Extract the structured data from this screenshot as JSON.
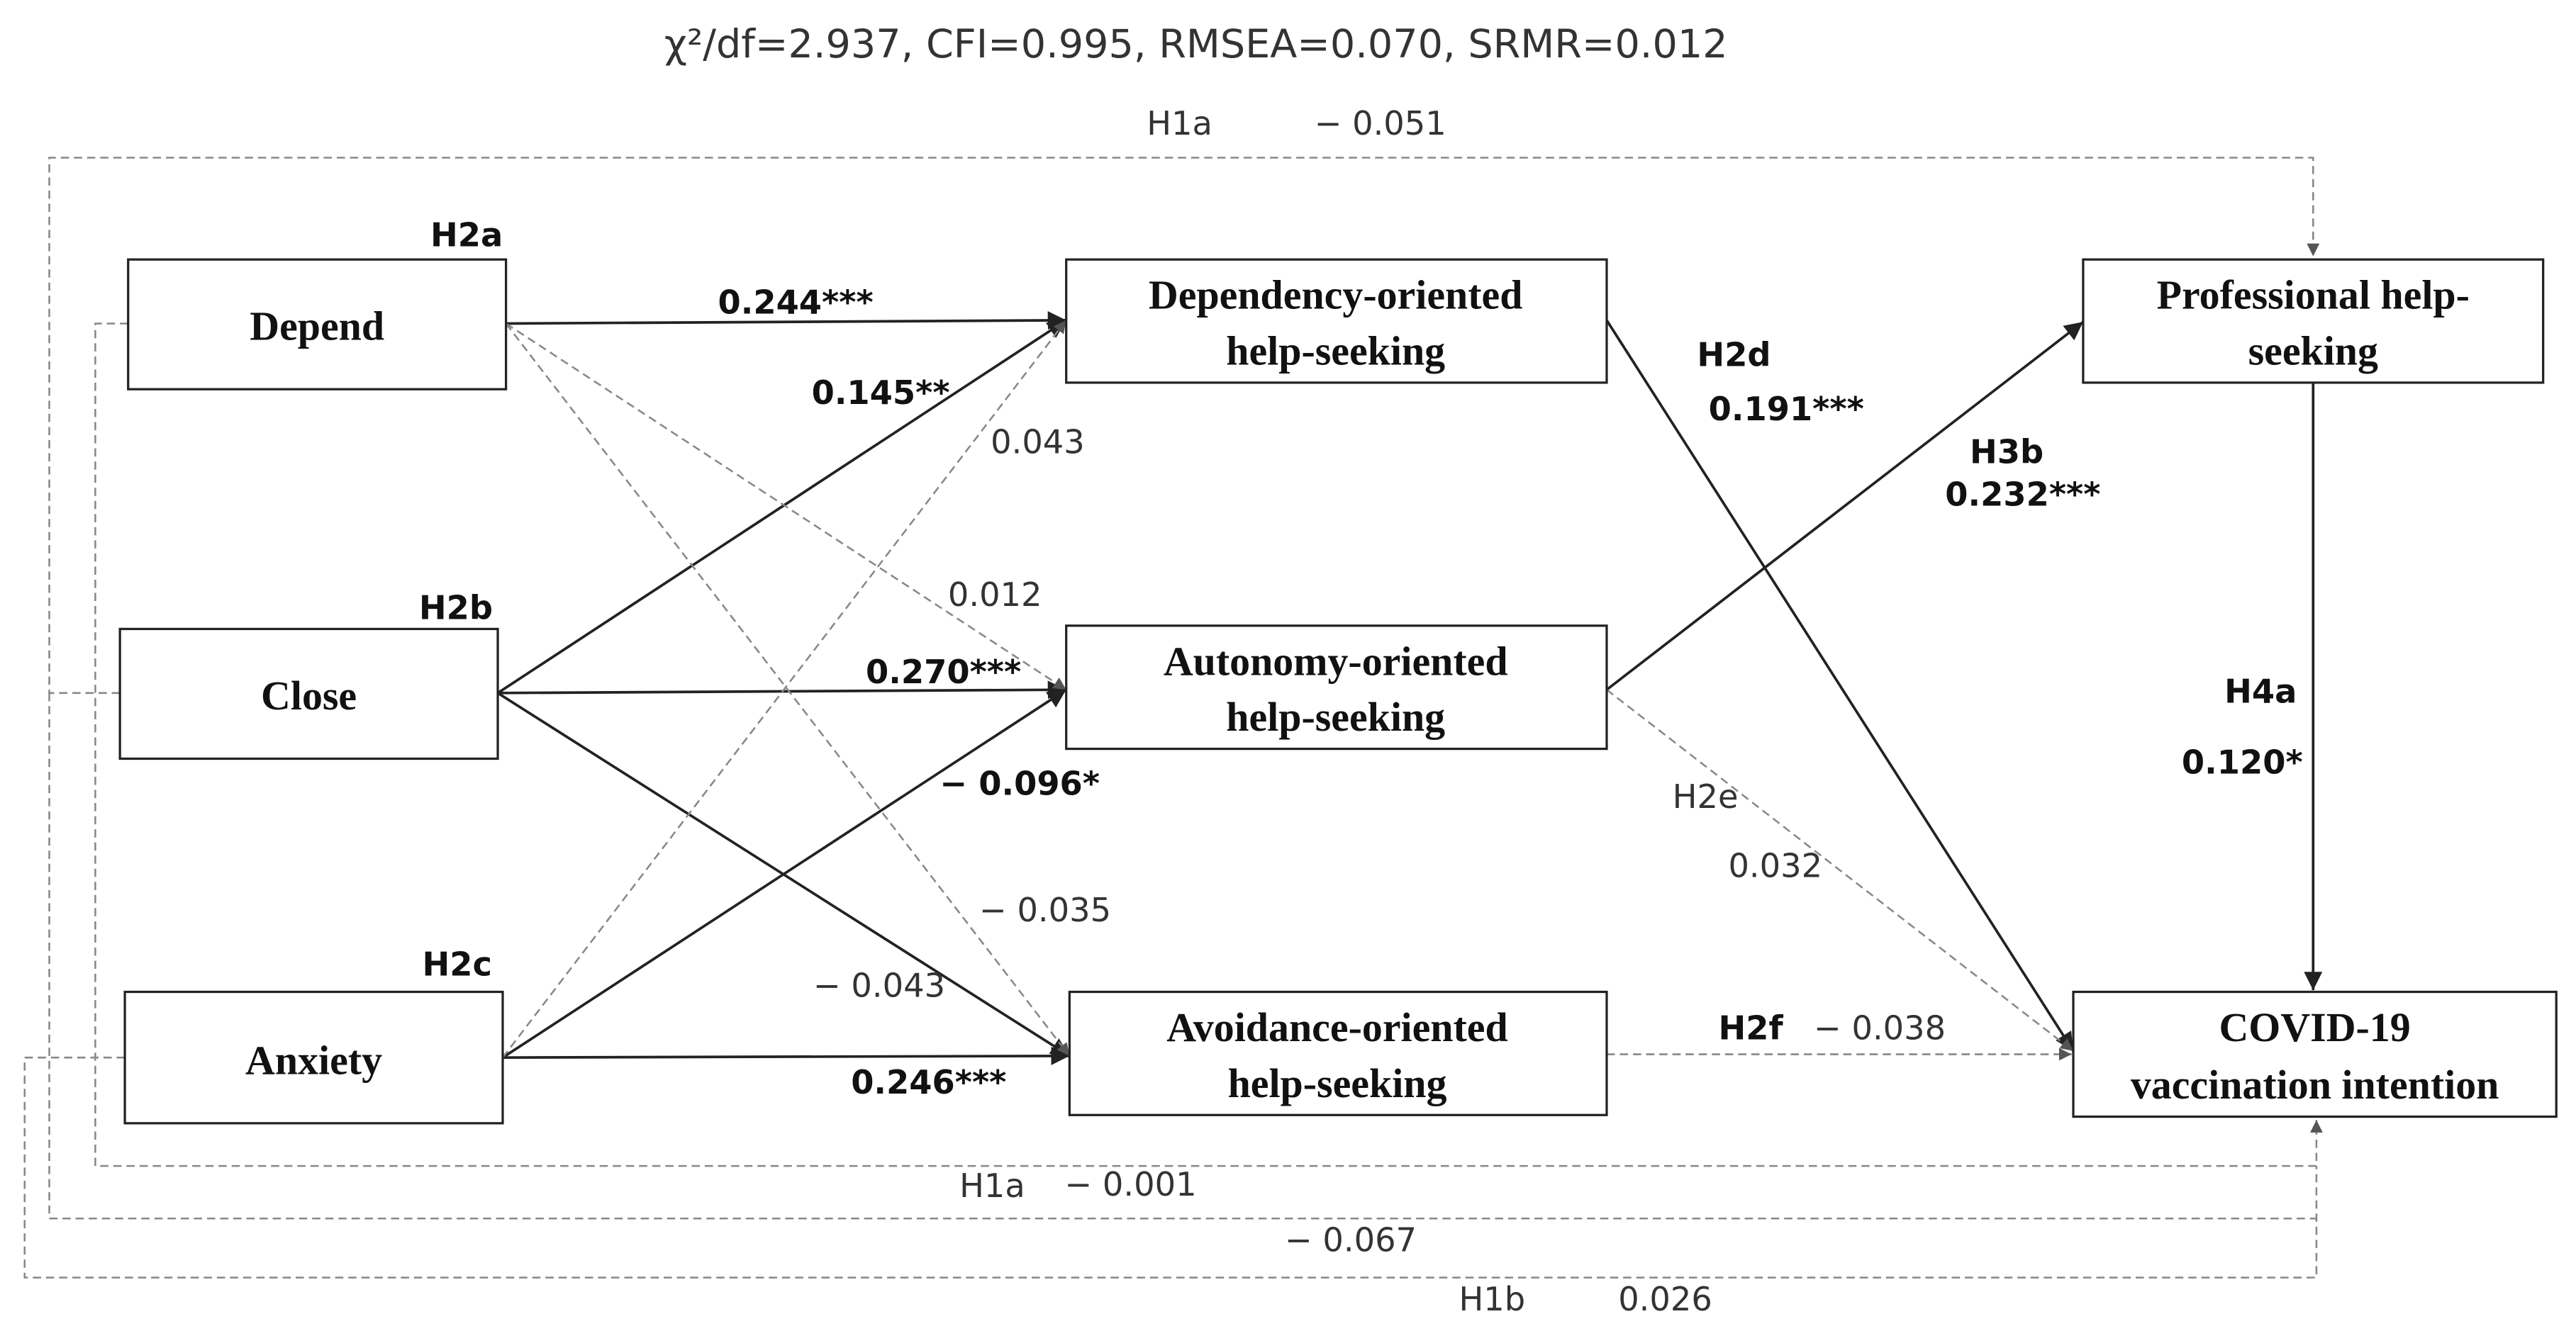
{
  "header": {
    "fit": "χ²/df=2.937, CFI=0.995, RMSEA=0.070, SRMR=0.012"
  },
  "nodes": [
    {
      "lines": [
        "Depend"
      ]
    },
    {
      "lines": [
        "Close"
      ]
    },
    {
      "lines": [
        "Anxiety"
      ]
    },
    {
      "lines": [
        "Dependency-oriented",
        "help-seeking"
      ]
    },
    {
      "lines": [
        "Autonomy-oriented",
        "help-seeking"
      ]
    },
    {
      "lines": [
        "Avoidance-oriented",
        "help-seeking"
      ]
    },
    {
      "lines": [
        "Professional help-",
        "seeking"
      ]
    },
    {
      "lines": [
        "COVID-19",
        "vaccination intention"
      ]
    }
  ],
  "paths": [
    {
      "hypothesis": "H1a",
      "coefficient": "− 0.051"
    },
    {
      "hypothesis": "H2a",
      "coefficient": "0.244***"
    },
    {
      "coefficient": "0.145**"
    },
    {
      "coefficient": "0.043"
    },
    {
      "hypothesis": "H2b",
      "coefficient": "0.012"
    },
    {
      "coefficient": "0.270***"
    },
    {
      "coefficient": "− 0.096*"
    },
    {
      "coefficient": "− 0.035"
    },
    {
      "coefficient": "− 0.043"
    },
    {
      "hypothesis": "H2c",
      "coefficient": "0.246***"
    },
    {
      "hypothesis": "H2d",
      "coefficient": "0.191***"
    },
    {
      "hypothesis": "H3b",
      "coefficient": "0.232***"
    },
    {
      "hypothesis": "H2e",
      "coefficient": "0.032"
    },
    {
      "hypothesis": "H2f",
      "coefficient": "− 0.038"
    },
    {
      "hypothesis": "H4a",
      "coefficient": "0.120*"
    },
    {
      "hypothesis": "H1a",
      "coefficient": "− 0.001"
    },
    {
      "coefficient": "− 0.067"
    },
    {
      "hypothesis": "H1b",
      "coefficient": "0.026"
    }
  ]
}
